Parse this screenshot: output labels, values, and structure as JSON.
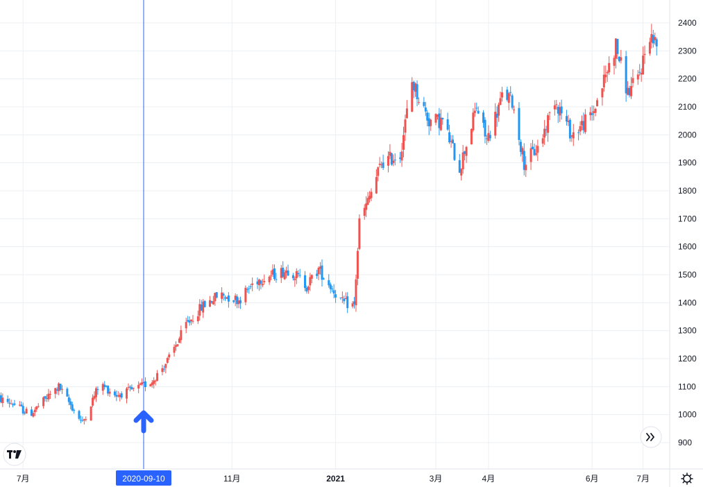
{
  "colors": {
    "up": "#ef5350",
    "down": "#2196f3",
    "grid": "#eceff2",
    "crosshair": "#2962ff",
    "marker": "#2962ff",
    "axis_text": "#131722"
  },
  "icons": {
    "logo": "tradingview-logo-icon",
    "scroll": "double-chevron-right-icon",
    "settings": "gear-icon"
  },
  "crosshair": {
    "date": "2020-09-10"
  },
  "chart_data": {
    "type": "candlestick",
    "y_ticks": [
      900,
      1000,
      1100,
      1200,
      1300,
      1400,
      1500,
      1600,
      1700,
      1800,
      1900,
      2000,
      2100,
      2200,
      2300,
      2400
    ],
    "ylim": [
      800,
      2460
    ],
    "x_ticks": [
      {
        "label": "7月",
        "date": "2020-07-01",
        "bold": false
      },
      {
        "label": "11月",
        "date": "2020-11-01",
        "bold": false
      },
      {
        "label": "2021",
        "date": "2021-01-01",
        "bold": true
      },
      {
        "label": "3月",
        "date": "2021-03-01",
        "bold": false
      },
      {
        "label": "4月",
        "date": "2021-04-01",
        "bold": false
      },
      {
        "label": "6月",
        "date": "2021-06-01",
        "bold": false
      },
      {
        "label": "7月",
        "date": "2021-07-01",
        "bold": false
      }
    ],
    "grid": true,
    "anchors": [
      [
        "2020-06-15",
        1060
      ],
      [
        "2020-06-25",
        1040
      ],
      [
        "2020-07-05",
        1000
      ],
      [
        "2020-07-15",
        1060
      ],
      [
        "2020-07-22",
        1100
      ],
      [
        "2020-08-05",
        970
      ],
      [
        "2020-08-15",
        1110
      ],
      [
        "2020-08-25",
        1070
      ],
      [
        "2020-09-05",
        1090
      ],
      [
        "2020-09-15",
        1120
      ],
      [
        "2020-09-25",
        1200
      ],
      [
        "2020-10-05",
        1320
      ],
      [
        "2020-10-15",
        1390
      ],
      [
        "2020-10-25",
        1430
      ],
      [
        "2020-11-05",
        1410
      ],
      [
        "2020-11-15",
        1480
      ],
      [
        "2020-11-25",
        1500
      ],
      [
        "2020-12-05",
        1520
      ],
      [
        "2020-12-15",
        1460
      ],
      [
        "2020-12-22",
        1520
      ],
      [
        "2021-01-05",
        1400
      ],
      [
        "2021-01-12",
        1390
      ],
      [
        "2021-01-15",
        1690
      ],
      [
        "2021-01-20",
        1760
      ],
      [
        "2021-01-28",
        1900
      ],
      [
        "2021-02-08",
        1930
      ],
      [
        "2021-02-15",
        2190
      ],
      [
        "2021-02-25",
        2050
      ],
      [
        "2021-03-05",
        2050
      ],
      [
        "2021-03-15",
        1880
      ],
      [
        "2021-03-25",
        2100
      ],
      [
        "2021-03-31",
        1980
      ],
      [
        "2021-04-10",
        2150
      ],
      [
        "2021-04-15",
        2120
      ],
      [
        "2021-04-22",
        1900
      ],
      [
        "2021-05-01",
        1960
      ],
      [
        "2021-05-10",
        2130
      ],
      [
        "2021-05-20",
        2000
      ],
      [
        "2021-06-01",
        2070
      ],
      [
        "2021-06-10",
        2230
      ],
      [
        "2021-06-15",
        2320
      ],
      [
        "2021-06-22",
        2150
      ],
      [
        "2021-06-28",
        2200
      ],
      [
        "2021-07-05",
        2360
      ],
      [
        "2021-07-09",
        2320
      ]
    ]
  }
}
